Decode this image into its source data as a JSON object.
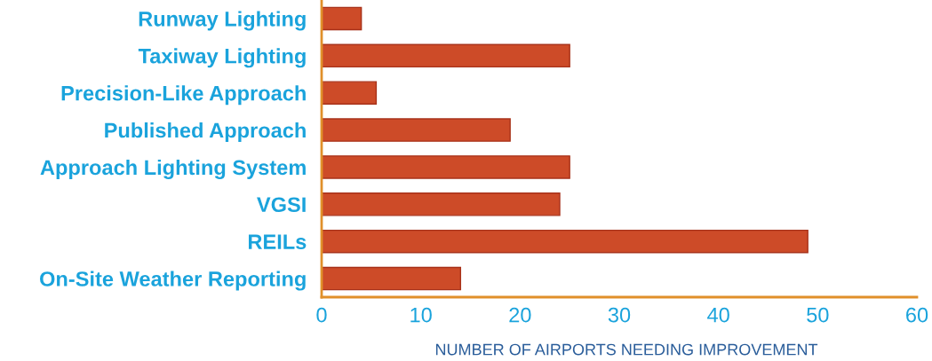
{
  "chart_data": {
    "type": "bar",
    "orientation": "horizontal",
    "xlabel": "NUMBER OF AIRPORTS NEEDING IMPROVEMENT",
    "categories": [
      "Runway Lighting",
      "Taxiway Lighting",
      "Precision-Like Approach",
      "Published Approach",
      "Approach Lighting System",
      "VGSI",
      "REILs",
      "On-Site Weather Reporting"
    ],
    "series": [
      {
        "color": "#cd4b28",
        "values": [
          4,
          25,
          5.5,
          19,
          25,
          24,
          49,
          14
        ]
      }
    ],
    "xlim": [
      0,
      60
    ],
    "xticks": [
      0,
      10,
      20,
      30,
      40,
      50,
      60
    ],
    "grid": false,
    "legend": false
  }
}
